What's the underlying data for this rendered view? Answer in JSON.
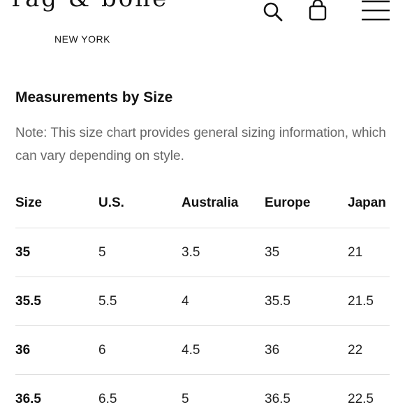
{
  "header": {
    "logo_word": "rag & bone",
    "logo_sub": "NEW YORK",
    "icons": [
      "search-icon",
      "bag-icon",
      "menu-icon"
    ]
  },
  "main": {
    "title": "Measurements by Size",
    "note": "Note: This size chart provides general sizing information, which can vary depending on style."
  },
  "table": {
    "headers": [
      "Size",
      "U.S.",
      "Australia",
      "Europe",
      "Japan"
    ],
    "rows": [
      [
        "35",
        "5",
        "3.5",
        "35",
        "21"
      ],
      [
        "35.5",
        "5.5",
        "4",
        "35.5",
        "21.5"
      ],
      [
        "36",
        "6",
        "4.5",
        "36",
        "22"
      ],
      [
        "36.5",
        "6.5",
        "5",
        "36.5",
        "22.5"
      ]
    ]
  }
}
